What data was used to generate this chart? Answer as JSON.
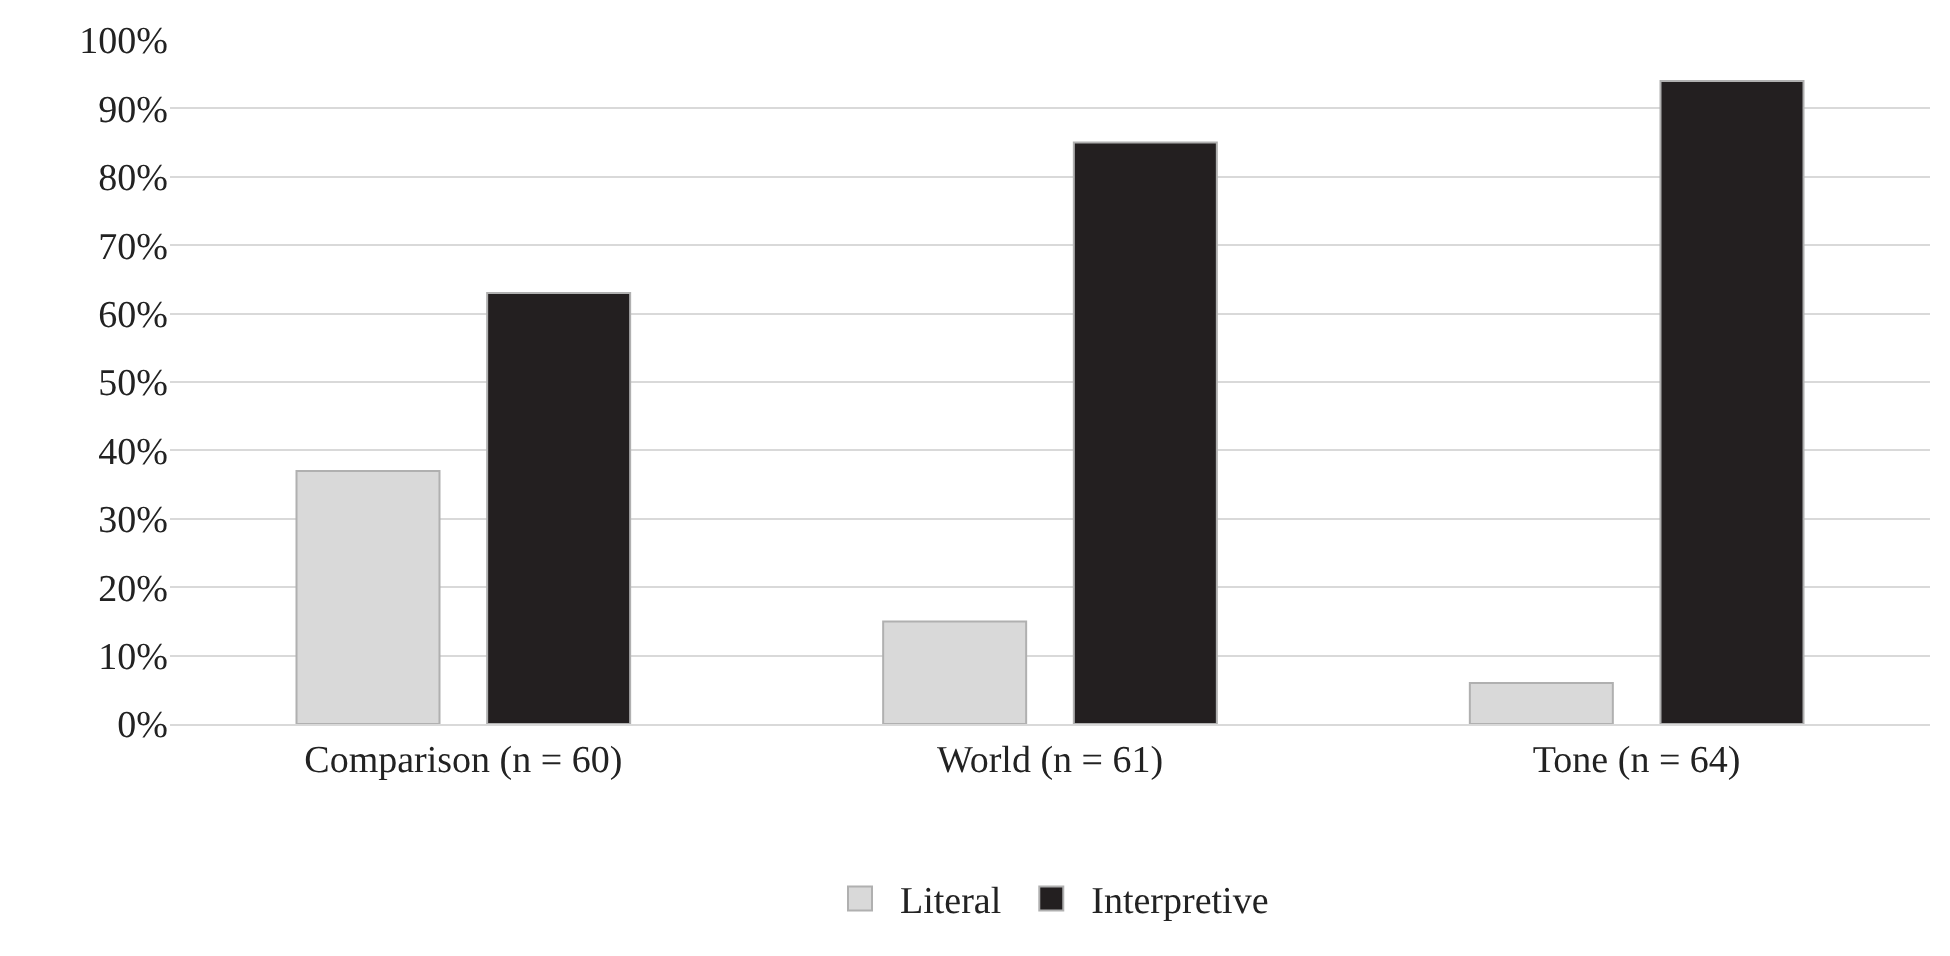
{
  "chart_data": {
    "type": "bar",
    "categories": [
      "Comparison (n = 60)",
      "World (n = 61)",
      "Tone (n = 64)"
    ],
    "series": [
      {
        "name": "Literal",
        "color": "#d9d9d9",
        "values": [
          37,
          15,
          6
        ]
      },
      {
        "name": "Interpretive",
        "color": "#231f20",
        "values": [
          63,
          85,
          94
        ]
      }
    ],
    "ylim": [
      0,
      100
    ],
    "yticks": [
      {
        "value": 0,
        "label": "0%"
      },
      {
        "value": 10,
        "label": "10%"
      },
      {
        "value": 20,
        "label": "20%"
      },
      {
        "value": 30,
        "label": "30%"
      },
      {
        "value": 40,
        "label": "40%"
      },
      {
        "value": 50,
        "label": "50%"
      },
      {
        "value": 60,
        "label": "60%"
      },
      {
        "value": 70,
        "label": "70%"
      },
      {
        "value": 80,
        "label": "80%"
      },
      {
        "value": 90,
        "label": "90%"
      },
      {
        "value": 100,
        "label": "100%"
      }
    ],
    "grid": "y",
    "legend": "bottom"
  }
}
